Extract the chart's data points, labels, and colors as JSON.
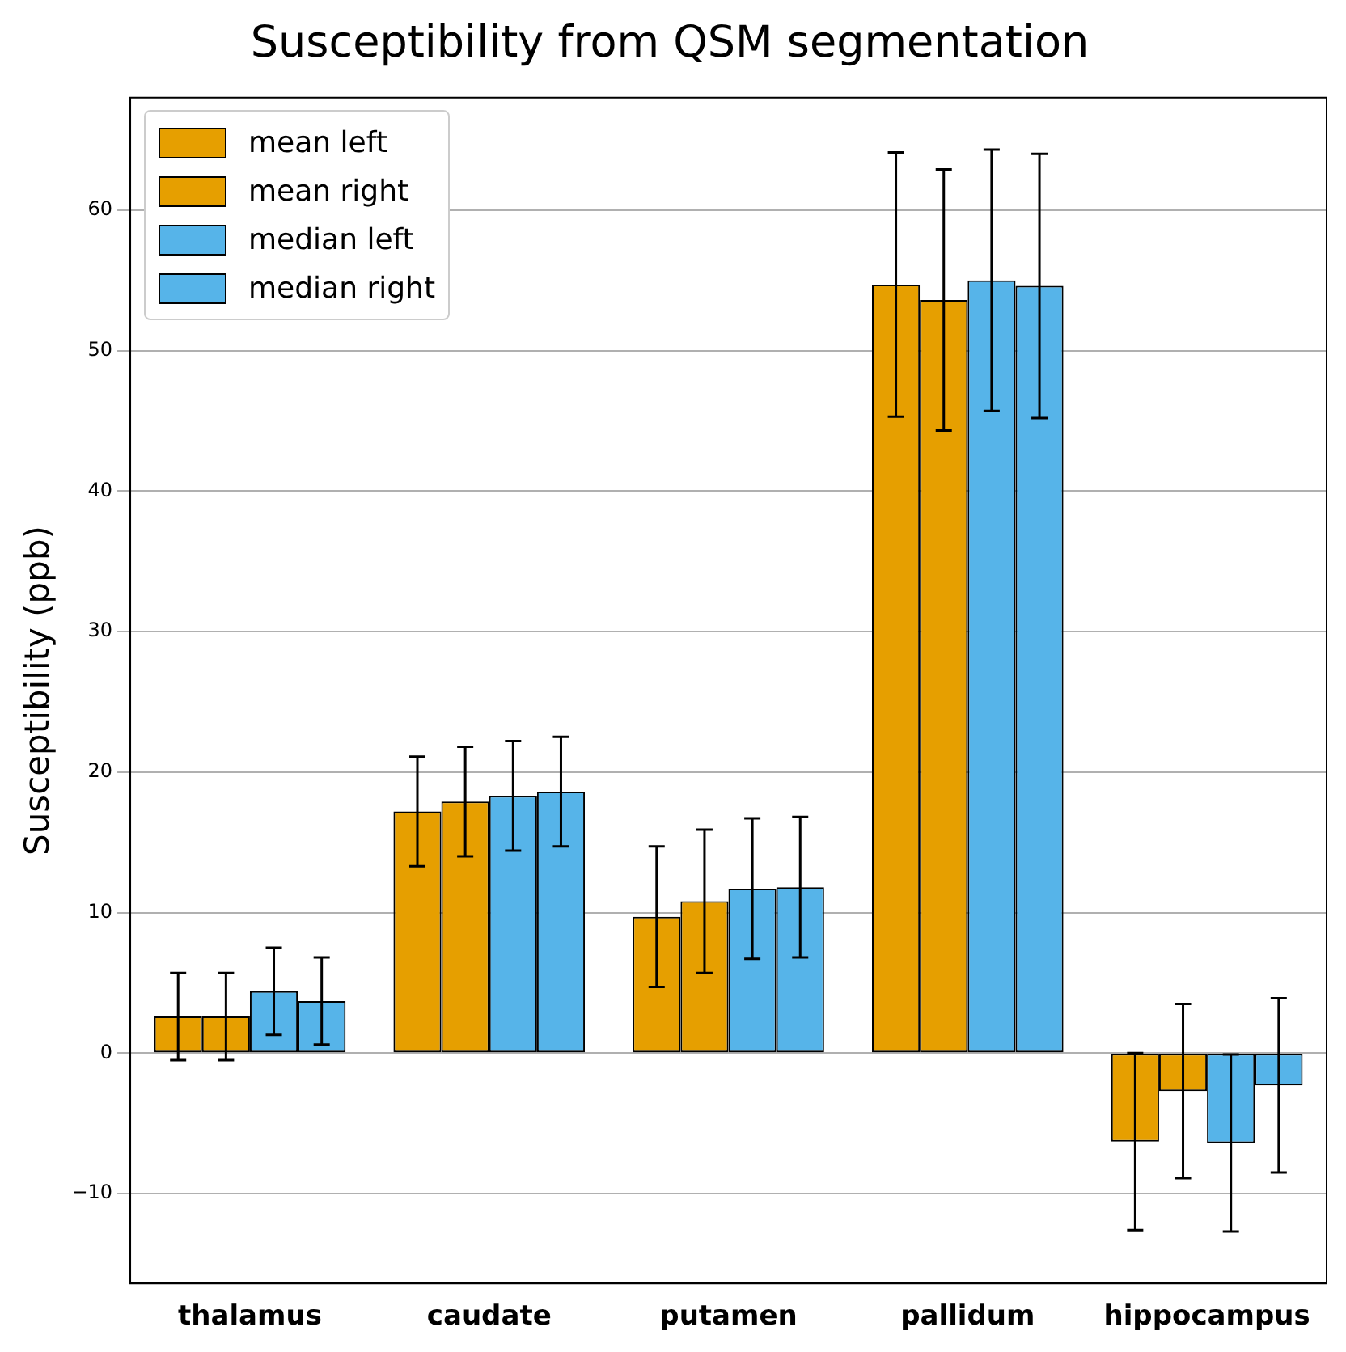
{
  "chart_data": {
    "type": "bar",
    "title": "Susceptibility from QSM segmentation",
    "ylabel": "Susceptibility (ppb)",
    "categories": [
      "thalamus",
      "caudate",
      "putamen",
      "pallidum",
      "hippocampus"
    ],
    "series": [
      {
        "name": "mean left",
        "color": "#e69f00",
        "values": [
          2.6,
          17.2,
          9.7,
          54.7,
          -6.3
        ],
        "errors": [
          3.1,
          3.9,
          5.0,
          9.4,
          6.3
        ]
      },
      {
        "name": "mean right",
        "color": "#e69f00",
        "values": [
          2.6,
          17.9,
          10.8,
          53.6,
          -2.7
        ],
        "errors": [
          3.1,
          3.9,
          5.1,
          9.3,
          6.2
        ]
      },
      {
        "name": "median left",
        "color": "#56b4e9",
        "values": [
          4.4,
          18.3,
          11.7,
          55.0,
          -6.4
        ],
        "errors": [
          3.1,
          3.9,
          5.0,
          9.3,
          6.3
        ]
      },
      {
        "name": "median right",
        "color": "#56b4e9",
        "values": [
          3.7,
          18.6,
          11.8,
          54.6,
          -2.3
        ],
        "errors": [
          3.1,
          3.9,
          5.0,
          9.4,
          6.2
        ]
      }
    ],
    "ylim": [
      -16.4,
      68
    ],
    "yticks": [
      -10,
      0,
      10,
      20,
      30,
      40,
      50,
      60
    ],
    "grid": "y",
    "legend": "top left"
  }
}
